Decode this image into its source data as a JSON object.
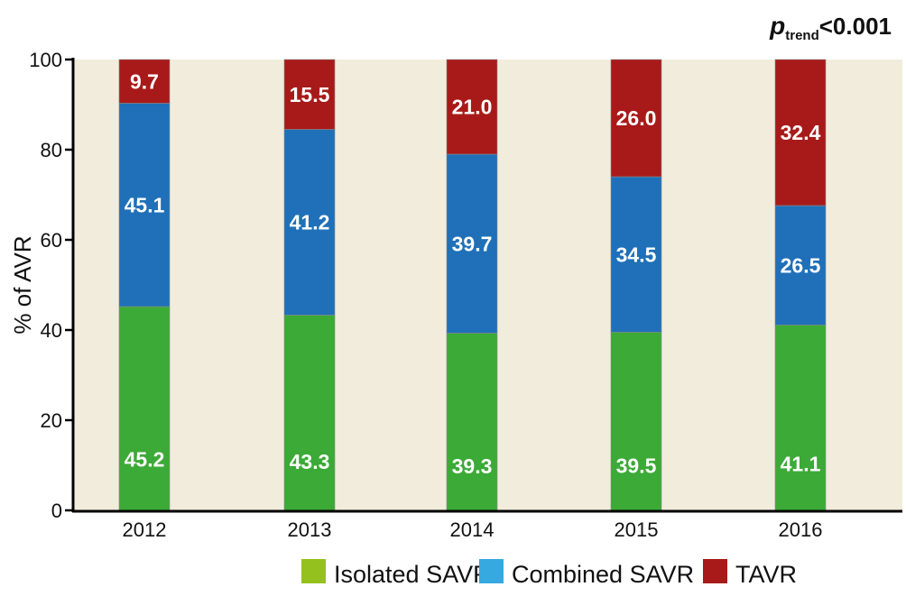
{
  "chart_data": {
    "type": "bar",
    "stacked": true,
    "title": "",
    "annotation": {
      "p": "p",
      "subscript": "trend",
      "text": "<0.001",
      "position": "top-right"
    },
    "xlabel": "",
    "ylabel": "% of AVR",
    "ylim": [
      0,
      100
    ],
    "yticks": [
      0,
      20,
      40,
      60,
      80,
      100
    ],
    "categories": [
      "2012",
      "2013",
      "2014",
      "2015",
      "2016"
    ],
    "series": [
      {
        "name": "Isolated SAVR",
        "color": "#3caa36",
        "legend_color": "#95c11f",
        "values": [
          45.2,
          43.3,
          39.3,
          39.5,
          41.1
        ]
      },
      {
        "name": "Combined SAVR",
        "color": "#1f70b8",
        "legend_color": "#36a9e1",
        "values": [
          45.1,
          41.2,
          39.7,
          34.5,
          26.5
        ]
      },
      {
        "name": "TAVR",
        "color": "#a81a19",
        "legend_color": "#a81a19",
        "values": [
          9.7,
          15.5,
          21.0,
          26.0,
          32.4
        ]
      }
    ],
    "background_color": "#f1ecdc",
    "grid": false,
    "legend_position": "bottom-right"
  }
}
